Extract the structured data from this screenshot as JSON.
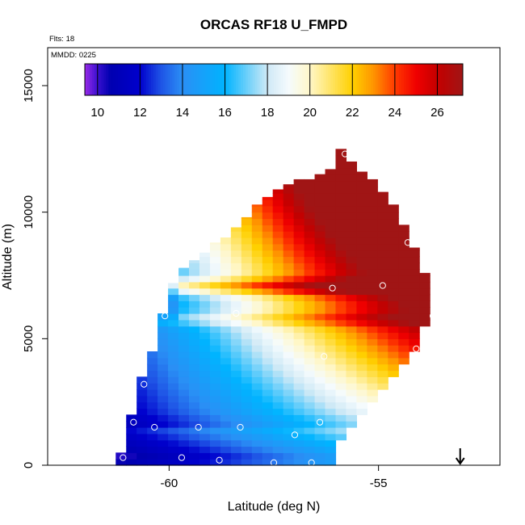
{
  "chart_data": {
    "type": "heatmap",
    "title": "ORCAS RF18 U_FMPD",
    "flights_label": "Flts: 18",
    "date_label": "MMDD: 0225",
    "xlabel": "Latitude (deg N)",
    "ylabel": "Altitude (m)",
    "xlim": [
      -62.9,
      -52.1
    ],
    "ylim": [
      0,
      16500
    ],
    "x_ticks": [
      -60,
      -55
    ],
    "y_ticks": [
      0,
      5000,
      10000,
      15000
    ],
    "x_tick_labels": [
      "-60",
      "-55"
    ],
    "y_tick_labels": [
      "0",
      "5000",
      "10000",
      "15000"
    ],
    "colorbar": {
      "range": [
        9.4,
        27.2
      ],
      "ticks": [
        10,
        12,
        14,
        16,
        18,
        20,
        22,
        24,
        26
      ],
      "tick_labels": [
        "10",
        "12",
        "14",
        "16",
        "18",
        "20",
        "22",
        "24",
        "26"
      ],
      "color_stops": [
        {
          "v": 9.4,
          "c": "#9a2be8"
        },
        {
          "v": 10.0,
          "c": "#3a10d0"
        },
        {
          "v": 10.6,
          "c": "#0000b0"
        },
        {
          "v": 12.0,
          "c": "#0000cd"
        },
        {
          "v": 13.0,
          "c": "#1f55e6"
        },
        {
          "v": 14.0,
          "c": "#2a8ff5"
        },
        {
          "v": 16.0,
          "c": "#00b4ff"
        },
        {
          "v": 18.0,
          "c": "#cfe9f6"
        },
        {
          "v": 19.0,
          "c": "#f5fbfd"
        },
        {
          "v": 20.0,
          "c": "#fff7c8"
        },
        {
          "v": 22.0,
          "c": "#ffd000"
        },
        {
          "v": 23.0,
          "c": "#ff9400"
        },
        {
          "v": 24.0,
          "c": "#ff3a00"
        },
        {
          "v": 25.0,
          "c": "#f00000"
        },
        {
          "v": 26.0,
          "c": "#c40000"
        },
        {
          "v": 27.2,
          "c": "#a01515"
        }
      ]
    },
    "column_bin_deg": 0.25,
    "altitude_bin_m": 250,
    "columns": [
      {
        "lat": -61.15,
        "top": 500
      },
      {
        "lat": -60.9,
        "top": 2000
      },
      {
        "lat": -60.65,
        "top": 3500
      },
      {
        "lat": -60.4,
        "top": 4500
      },
      {
        "lat": -60.15,
        "top": 6000
      },
      {
        "lat": -59.9,
        "top": 7200
      },
      {
        "lat": -59.65,
        "top": 7800
      },
      {
        "lat": -59.4,
        "top": 8100
      },
      {
        "lat": -59.15,
        "top": 8400
      },
      {
        "lat": -58.9,
        "top": 8800
      },
      {
        "lat": -58.65,
        "top": 9000
      },
      {
        "lat": -58.4,
        "top": 9400
      },
      {
        "lat": -58.15,
        "top": 9800
      },
      {
        "lat": -57.9,
        "top": 10300
      },
      {
        "lat": -57.65,
        "top": 10600
      },
      {
        "lat": -57.4,
        "top": 10900
      },
      {
        "lat": -57.15,
        "top": 11100
      },
      {
        "lat": -56.9,
        "top": 11300
      },
      {
        "lat": -56.65,
        "top": 11300
      },
      {
        "lat": -56.4,
        "top": 11500
      },
      {
        "lat": -56.15,
        "top": 11700
      },
      {
        "lat": -55.9,
        "top": 12500
      },
      {
        "lat": -55.65,
        "top": 12000
      },
      {
        "lat": -55.4,
        "top": 11600
      },
      {
        "lat": -55.15,
        "top": 11300
      },
      {
        "lat": -54.9,
        "top": 10800
      },
      {
        "lat": -54.65,
        "top": 10300
      },
      {
        "lat": -54.4,
        "top": 9500
      },
      {
        "lat": -54.15,
        "top": 8600
      },
      {
        "lat": -53.9,
        "top": 7600
      }
    ],
    "bottom_edge": [
      {
        "lat": -61.15,
        "bottom": 0
      },
      {
        "lat": -56.15,
        "bottom": 0
      },
      {
        "lat": -55.9,
        "bottom": 1200
      },
      {
        "lat": -55.65,
        "bottom": 1700
      },
      {
        "lat": -55.4,
        "bottom": 2200
      },
      {
        "lat": -55.15,
        "bottom": 2700
      },
      {
        "lat": -54.9,
        "bottom": 3000
      },
      {
        "lat": -54.65,
        "bottom": 3500
      },
      {
        "lat": -54.4,
        "bottom": 4000
      },
      {
        "lat": -54.15,
        "bottom": 4500
      },
      {
        "lat": -53.9,
        "bottom": 5500
      }
    ],
    "layer_shifts": [
      {
        "z": 400,
        "dv": -0.6
      },
      {
        "z": 1400,
        "dv": 1.0
      },
      {
        "z": 1600,
        "dv": -0.8
      },
      {
        "z": 5800,
        "dv": 1.6
      },
      {
        "z": 7000,
        "dv": 2.4
      },
      {
        "z": 7200,
        "dv": 1.8
      }
    ],
    "flight_track_points": [
      {
        "lat": -61.1,
        "alt": 300
      },
      {
        "lat": -60.85,
        "alt": 1700
      },
      {
        "lat": -60.6,
        "alt": 3200
      },
      {
        "lat": -60.35,
        "alt": 1500
      },
      {
        "lat": -60.1,
        "alt": 5900
      },
      {
        "lat": -59.85,
        "alt": 7800
      },
      {
        "lat": -59.7,
        "alt": 300
      },
      {
        "lat": -59.3,
        "alt": 1500
      },
      {
        "lat": -58.8,
        "alt": 200
      },
      {
        "lat": -58.4,
        "alt": 6000
      },
      {
        "lat": -58.3,
        "alt": 1500
      },
      {
        "lat": -57.5,
        "alt": 100
      },
      {
        "lat": -57.0,
        "alt": 1200
      },
      {
        "lat": -56.6,
        "alt": 100
      },
      {
        "lat": -56.4,
        "alt": 1700
      },
      {
        "lat": -56.3,
        "alt": 4300
      },
      {
        "lat": -56.1,
        "alt": 7000
      },
      {
        "lat": -55.8,
        "alt": 12300
      },
      {
        "lat": -54.9,
        "alt": 7100
      },
      {
        "lat": -54.3,
        "alt": 8800
      },
      {
        "lat": -54.1,
        "alt": 4600
      },
      {
        "lat": -53.7,
        "alt": 5900
      }
    ],
    "direction_arrow_lat": -53.05
  }
}
